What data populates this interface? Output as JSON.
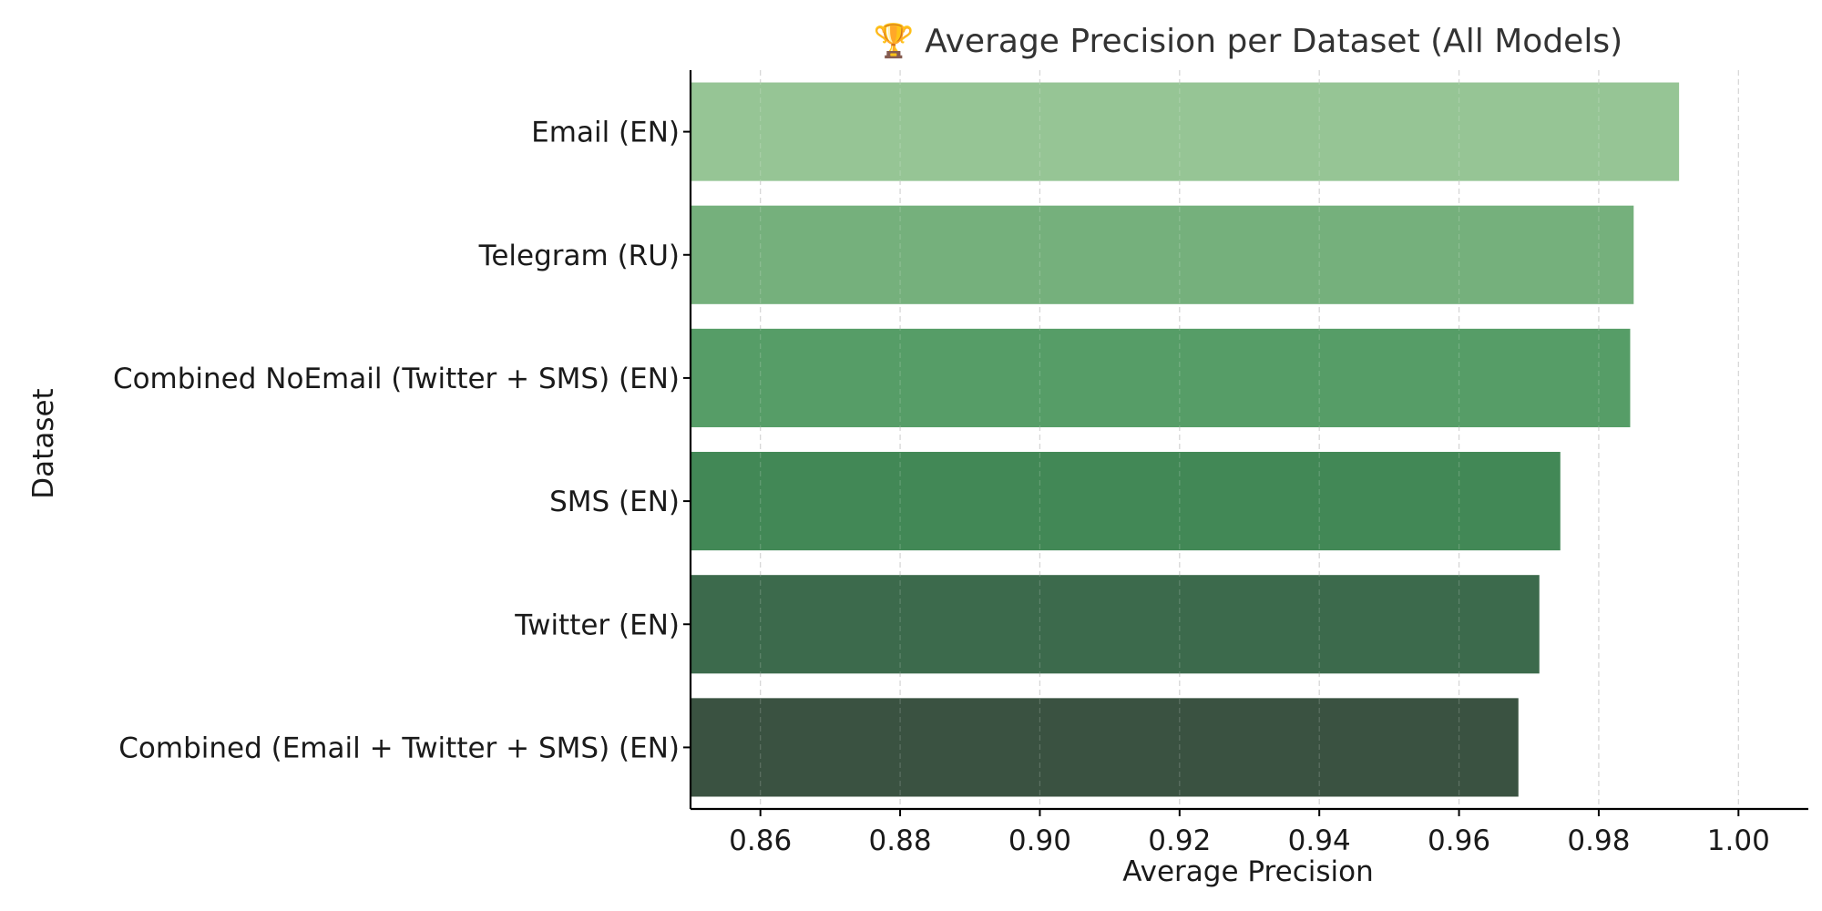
{
  "chart_data": {
    "type": "bar",
    "orientation": "horizontal",
    "title": "🏆 Average Precision per Dataset (All Models)",
    "xlabel": "Average Precision",
    "ylabel": "Dataset",
    "categories": [
      "Email (EN)",
      "Telegram (RU)",
      "Combined NoEmail (Twitter + SMS) (EN)",
      "SMS (EN)",
      "Twitter (EN)",
      "Combined (Email + Twitter + SMS) (EN)"
    ],
    "values": [
      0.9915,
      0.985,
      0.9845,
      0.9745,
      0.9715,
      0.9685
    ],
    "colors": [
      "#96c595",
      "#75b07c",
      "#569d67",
      "#428856",
      "#3c6a4c",
      "#3a5241"
    ],
    "xlim": [
      0.85,
      1.01
    ],
    "xticks": [
      "0.86",
      "0.88",
      "0.90",
      "0.92",
      "0.94",
      "0.96",
      "0.98",
      "1.00"
    ],
    "grid": "x dashed",
    "legend": "none"
  }
}
